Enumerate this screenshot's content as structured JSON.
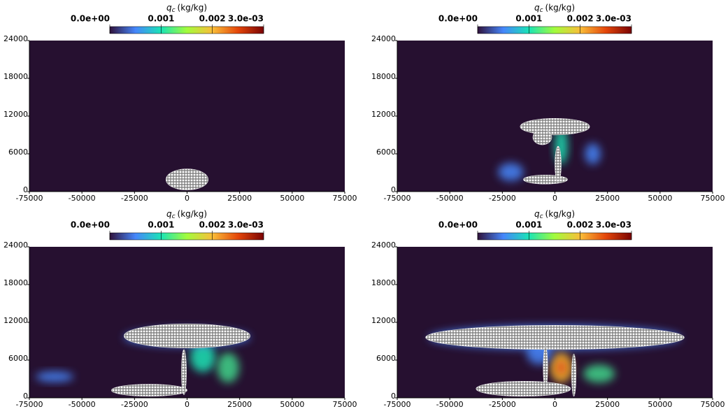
{
  "chart_data": [
    {
      "type": "heatmap",
      "background": "#261030",
      "xlim": [
        -75000,
        75000
      ],
      "xticks": [
        -75000,
        -50000,
        -25000,
        0,
        25000,
        50000,
        75000
      ],
      "ylim": [
        0,
        24000
      ],
      "yticks": [
        0,
        6000,
        12000,
        18000,
        24000
      ],
      "colorbar": {
        "label_symbol": "q",
        "label_subscript": "c",
        "label_unit": "(kg/kg)",
        "lim": [
          0,
          0.003
        ],
        "ticks": [
          {
            "value": 0,
            "label": "0.0e+00"
          },
          0.001,
          0.002,
          {
            "value": 0.003,
            "label": "3.0e-03"
          }
        ],
        "colormap": [
          "#30123b",
          "#4686fb",
          "#1ae4b6",
          "#a2fc3c",
          "#fabe39",
          "#e4460a",
          "#7a0403"
        ]
      }
    },
    {
      "type": "heatmap",
      "background": "#261030",
      "xlim": [
        -75000,
        75000
      ],
      "xticks": [
        -75000,
        -50000,
        -25000,
        0,
        25000,
        50000,
        75000
      ],
      "ylim": [
        0,
        24000
      ],
      "yticks": [
        0,
        6000,
        12000,
        18000,
        24000
      ],
      "colorbar": {
        "label_symbol": "q",
        "label_subscript": "c",
        "label_unit": "(kg/kg)",
        "lim": [
          0,
          0.003
        ],
        "ticks": [
          {
            "value": 0,
            "label": "0.0e+00"
          },
          0.001,
          0.002,
          {
            "value": 0.003,
            "label": "3.0e-03"
          }
        ],
        "colormap": [
          "#30123b",
          "#4686fb",
          "#1ae4b6",
          "#a2fc3c",
          "#fabe39",
          "#e4460a",
          "#7a0403"
        ]
      }
    },
    {
      "type": "heatmap",
      "background": "#261030",
      "xlim": [
        -75000,
        75000
      ],
      "xticks": [
        -75000,
        -50000,
        -25000,
        0,
        25000,
        50000,
        75000
      ],
      "ylim": [
        0,
        24000
      ],
      "yticks": [
        0,
        6000,
        12000,
        18000,
        24000
      ],
      "colorbar": {
        "label_symbol": "q",
        "label_subscript": "c",
        "label_unit": "(kg/kg)",
        "lim": [
          0,
          0.003
        ],
        "ticks": [
          {
            "value": 0,
            "label": "0.0e+00"
          },
          0.001,
          0.002,
          {
            "value": 0.003,
            "label": "3.0e-03"
          }
        ],
        "colormap": [
          "#30123b",
          "#4686fb",
          "#1ae4b6",
          "#a2fc3c",
          "#fabe39",
          "#e4460a",
          "#7a0403"
        ]
      }
    },
    {
      "type": "heatmap",
      "background": "#261030",
      "xlim": [
        -75000,
        75000
      ],
      "xticks": [
        -75000,
        -50000,
        -25000,
        0,
        25000,
        50000,
        75000
      ],
      "ylim": [
        0,
        24000
      ],
      "yticks": [
        0,
        6000,
        12000,
        18000,
        24000
      ],
      "colorbar": {
        "label_symbol": "q",
        "label_subscript": "c",
        "label_unit": "(kg/kg)",
        "lim": [
          0,
          0.003
        ],
        "ticks": [
          {
            "value": 0,
            "label": "0.0e+00"
          },
          0.001,
          0.002,
          {
            "value": 0.003,
            "label": "3.0e-03"
          }
        ],
        "colormap": [
          "#30123b",
          "#4686fb",
          "#1ae4b6",
          "#a2fc3c",
          "#fabe39",
          "#e4460a",
          "#7a0403"
        ]
      }
    }
  ]
}
